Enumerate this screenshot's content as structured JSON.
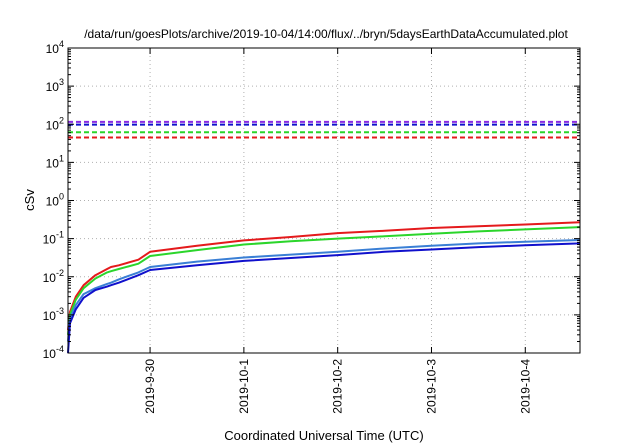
{
  "chart_data": {
    "type": "line",
    "title": "/data/run/goesPlots/archive/2019-10-04/14:00/flux/../bryn/5daysEarthDataAccumulated.plot",
    "xlabel": "Coordinated Universal Time (UTC)",
    "ylabel": "cSv",
    "x_ticks": [
      "2019-9-30",
      "2019-10-1",
      "2019-10-2",
      "2019-10-3",
      "2019-10-4"
    ],
    "xlim": [
      "2019-09-29T03:00",
      "2019-10-04T14:00"
    ],
    "y_scale": "log",
    "ylim": [
      0.0001,
      10000
    ],
    "y_ticks": [
      {
        "base": "10",
        "exp": "-4"
      },
      {
        "base": "10",
        "exp": "-3"
      },
      {
        "base": "10",
        "exp": "-2"
      },
      {
        "base": "10",
        "exp": "-1"
      },
      {
        "base": "10",
        "exp": "0"
      },
      {
        "base": "10",
        "exp": "1"
      },
      {
        "base": "10",
        "exp": "2"
      },
      {
        "base": "10",
        "exp": "3"
      },
      {
        "base": "10",
        "exp": "4"
      }
    ],
    "grid": true,
    "series": [
      {
        "color": "#e41a1c",
        "style": "solid",
        "points": [
          [
            "2019-09-29T03:00",
            0.0004
          ],
          [
            "2019-09-29T03:30",
            0.0012
          ],
          [
            "2019-09-29T05:00",
            0.003
          ],
          [
            "2019-09-29T07:00",
            0.006
          ],
          [
            "2019-09-29T10:00",
            0.011
          ],
          [
            "2019-09-29T13:00",
            0.016
          ],
          [
            "2019-09-29T14:00",
            0.018
          ],
          [
            "2019-09-29T16:00",
            0.02
          ],
          [
            "2019-09-29T21:00",
            0.028
          ],
          [
            "2019-09-30T00:00",
            0.045
          ],
          [
            "2019-09-30T12:00",
            0.065
          ],
          [
            "2019-10-01T00:00",
            0.09
          ],
          [
            "2019-10-01T12:00",
            0.11
          ],
          [
            "2019-10-02T00:00",
            0.14
          ],
          [
            "2019-10-02T12:00",
            0.16
          ],
          [
            "2019-10-03T00:00",
            0.19
          ],
          [
            "2019-10-03T12:00",
            0.21
          ],
          [
            "2019-10-04T00:00",
            0.235
          ],
          [
            "2019-10-04T14:00",
            0.27
          ]
        ]
      },
      {
        "color": "#2bd52b",
        "style": "solid",
        "points": [
          [
            "2019-09-29T03:00",
            0.0003
          ],
          [
            "2019-09-29T03:30",
            0.001
          ],
          [
            "2019-09-29T05:00",
            0.0025
          ],
          [
            "2019-09-29T07:00",
            0.005
          ],
          [
            "2019-09-29T10:00",
            0.009
          ],
          [
            "2019-09-29T13:00",
            0.013
          ],
          [
            "2019-09-29T14:00",
            0.014
          ],
          [
            "2019-09-29T16:00",
            0.016
          ],
          [
            "2019-09-29T21:00",
            0.022
          ],
          [
            "2019-09-30T00:00",
            0.035
          ],
          [
            "2019-09-30T12:00",
            0.05
          ],
          [
            "2019-10-01T00:00",
            0.07
          ],
          [
            "2019-10-01T12:00",
            0.085
          ],
          [
            "2019-10-02T00:00",
            0.1
          ],
          [
            "2019-10-02T12:00",
            0.115
          ],
          [
            "2019-10-03T00:00",
            0.135
          ],
          [
            "2019-10-03T12:00",
            0.155
          ],
          [
            "2019-10-04T00:00",
            0.175
          ],
          [
            "2019-10-04T14:00",
            0.2
          ]
        ]
      },
      {
        "color": "#3a7fd5",
        "style": "solid",
        "points": [
          [
            "2019-09-29T03:00",
            0.0002
          ],
          [
            "2019-09-29T03:30",
            0.0008
          ],
          [
            "2019-09-29T05:00",
            0.0018
          ],
          [
            "2019-09-29T07:00",
            0.0035
          ],
          [
            "2019-09-29T10:00",
            0.005
          ],
          [
            "2019-09-29T13:00",
            0.0065
          ],
          [
            "2019-09-29T14:00",
            0.007
          ],
          [
            "2019-09-29T16:00",
            0.0085
          ],
          [
            "2019-09-29T21:00",
            0.013
          ],
          [
            "2019-09-30T00:00",
            0.018
          ],
          [
            "2019-09-30T12:00",
            0.025
          ],
          [
            "2019-10-01T00:00",
            0.032
          ],
          [
            "2019-10-01T12:00",
            0.038
          ],
          [
            "2019-10-02T00:00",
            0.045
          ],
          [
            "2019-10-02T12:00",
            0.055
          ],
          [
            "2019-10-03T00:00",
            0.065
          ],
          [
            "2019-10-03T12:00",
            0.075
          ],
          [
            "2019-10-04T00:00",
            0.083
          ],
          [
            "2019-10-04T14:00",
            0.092
          ]
        ]
      },
      {
        "color": "#1010cc",
        "style": "solid",
        "points": [
          [
            "2019-09-29T03:00",
            0.0001
          ],
          [
            "2019-09-29T03:30",
            0.0006
          ],
          [
            "2019-09-29T05:00",
            0.0014
          ],
          [
            "2019-09-29T07:00",
            0.0028
          ],
          [
            "2019-09-29T10:00",
            0.0045
          ],
          [
            "2019-09-29T13:00",
            0.0055
          ],
          [
            "2019-09-29T14:00",
            0.006
          ],
          [
            "2019-09-29T16:00",
            0.007
          ],
          [
            "2019-09-29T21:00",
            0.011
          ],
          [
            "2019-09-30T00:00",
            0.015
          ],
          [
            "2019-09-30T12:00",
            0.02
          ],
          [
            "2019-10-01T00:00",
            0.026
          ],
          [
            "2019-10-01T12:00",
            0.031
          ],
          [
            "2019-10-02T00:00",
            0.037
          ],
          [
            "2019-10-02T12:00",
            0.045
          ],
          [
            "2019-10-03T00:00",
            0.052
          ],
          [
            "2019-10-03T12:00",
            0.06
          ],
          [
            "2019-10-04T00:00",
            0.067
          ],
          [
            "2019-10-04T14:00",
            0.075
          ]
        ]
      },
      {
        "color": "#8a2be2",
        "style": "dashed",
        "points": [
          [
            "2019-09-29T03:00",
            115
          ],
          [
            "2019-10-04T14:00",
            115
          ]
        ]
      },
      {
        "color": "#1010cc",
        "style": "dashed",
        "points": [
          [
            "2019-09-29T03:00",
            98
          ],
          [
            "2019-10-04T14:00",
            98
          ]
        ]
      },
      {
        "color": "#2bd52b",
        "style": "dashed",
        "points": [
          [
            "2019-09-29T03:00",
            62
          ],
          [
            "2019-10-04T14:00",
            62
          ]
        ]
      },
      {
        "color": "#e41a1c",
        "style": "dashed",
        "points": [
          [
            "2019-09-29T03:00",
            45
          ],
          [
            "2019-10-04T14:00",
            45
          ]
        ]
      }
    ]
  }
}
